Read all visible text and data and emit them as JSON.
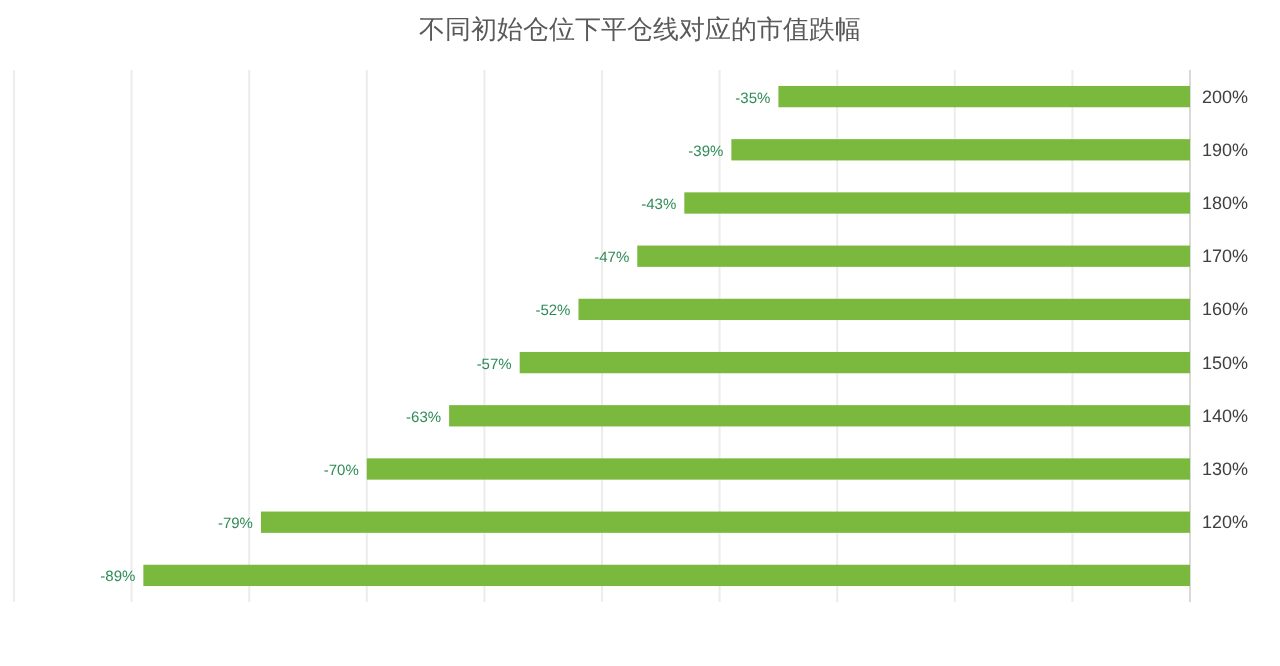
{
  "chart_data": {
    "type": "bar",
    "orientation": "horizontal",
    "title": "不同初始仓位下平仓线对应的市值跌幅",
    "categories": [
      "200%",
      "190%",
      "180%",
      "170%",
      "160%",
      "150%",
      "140%",
      "130%",
      "120%",
      null
    ],
    "values": [
      -35,
      -39,
      -43,
      -47,
      -52,
      -57,
      -63,
      -70,
      -79,
      -89
    ],
    "value_labels": [
      "-35%",
      "-39%",
      "-43%",
      "-47%",
      "-52%",
      "-57%",
      "-63%",
      "-70%",
      "-79%",
      "-89%"
    ],
    "color": "#7ab83e",
    "xlim": [
      -100,
      0
    ],
    "xticks": [
      {
        "value": -100,
        "label": null
      },
      {
        "value": -90,
        "label": null
      },
      {
        "value": -80,
        "label": null
      },
      {
        "value": -70,
        "label": null
      },
      {
        "value": -60,
        "label": null
      },
      {
        "value": -50,
        "label": null
      },
      {
        "value": -40,
        "label": null
      },
      {
        "value": -30,
        "label": null
      },
      {
        "value": -20,
        "label": null
      },
      {
        "value": -10,
        "label": null
      },
      {
        "value": 0,
        "label": null
      }
    ],
    "grid": "x",
    "tick_labels": "y"
  }
}
